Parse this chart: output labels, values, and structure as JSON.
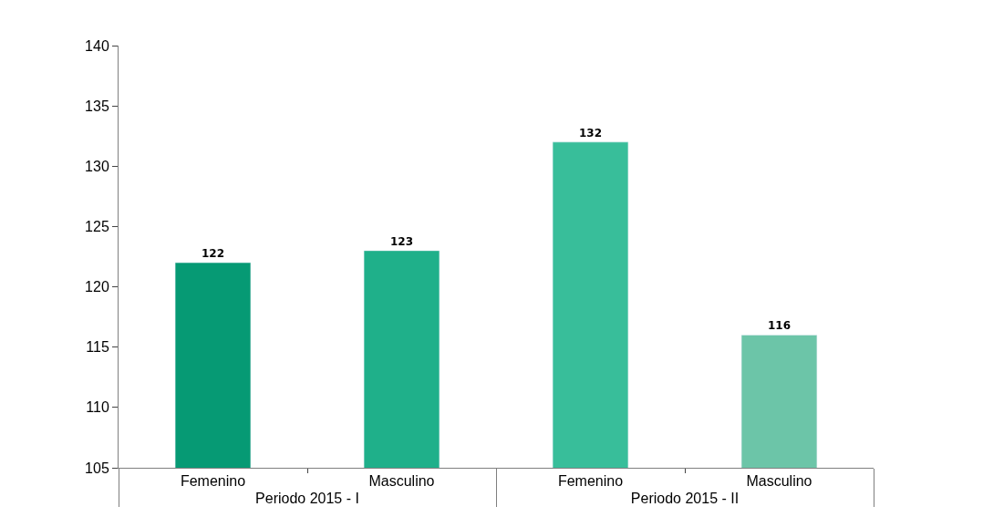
{
  "chart_data": {
    "type": "bar",
    "categories": [
      "Femenino",
      "Masculino",
      "Femenino",
      "Masculino"
    ],
    "values": [
      122,
      123,
      132,
      116
    ],
    "colors": [
      "#069a74",
      "#1fb08a",
      "#38be9a",
      "#6cc5a8"
    ],
    "annotations": [
      "Periodo 2015 - I",
      "Periodo 2015 - II"
    ],
    "ylim": [
      105,
      140
    ],
    "yticks": [
      105,
      110,
      115,
      120,
      125,
      130,
      135,
      140
    ],
    "data_labels": true
  }
}
